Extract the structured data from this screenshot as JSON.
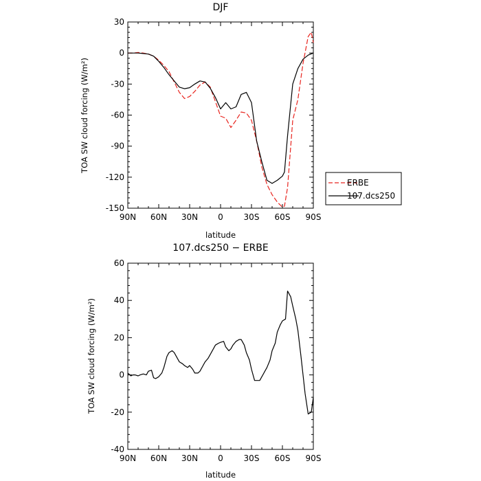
{
  "chart_data": [
    {
      "type": "line",
      "title": "DJF",
      "xlabel": "latitude",
      "ylabel": "TOA SW cloud forcing (W/m²)",
      "xlim": [
        90,
        -90
      ],
      "ylim": [
        -150,
        30
      ],
      "xticks": [
        90,
        60,
        30,
        0,
        -30,
        -60,
        -90
      ],
      "xtick_labels": [
        "90N",
        "60N",
        "30N",
        "0",
        "30S",
        "60S",
        "90S"
      ],
      "yticks": [
        30,
        0,
        -30,
        -60,
        -90,
        -120,
        -150
      ],
      "ytick_labels": [
        "30",
        "0",
        "-30",
        "-60",
        "-90",
        "-120",
        "-150"
      ],
      "grid": false,
      "legend_position": "right",
      "series": [
        {
          "name": "ERBE",
          "color": "#e8231d",
          "style": "dashed",
          "x": [
            90,
            85,
            80,
            75,
            70,
            65,
            60,
            55,
            50,
            45,
            40,
            35,
            30,
            25,
            20,
            15,
            10,
            5,
            0,
            -5,
            -10,
            -15,
            -20,
            -25,
            -30,
            -35,
            -40,
            -45,
            -50,
            -55,
            -60,
            -62,
            -65,
            -70,
            -75,
            -80,
            -85,
            -88,
            -90
          ],
          "values": [
            0,
            0,
            0.5,
            0,
            -1,
            -3,
            -7,
            -12,
            -18,
            -28,
            -38,
            -44,
            -42,
            -37,
            -31,
            -28,
            -33,
            -47,
            -61,
            -63,
            -72,
            -65,
            -57,
            -58,
            -65,
            -85,
            -110,
            -127,
            -137,
            -144,
            -149,
            -148,
            -130,
            -65,
            -45,
            -10,
            16,
            20,
            10
          ]
        },
        {
          "name": "107.dcs250",
          "color": "#000000",
          "style": "solid",
          "x": [
            90,
            85,
            80,
            75,
            70,
            65,
            60,
            55,
            50,
            45,
            40,
            35,
            30,
            25,
            20,
            15,
            10,
            5,
            0,
            -5,
            -10,
            -15,
            -20,
            -25,
            -30,
            -35,
            -40,
            -45,
            -50,
            -55,
            -60,
            -62,
            -65,
            -70,
            -75,
            -80,
            -85,
            -90
          ],
          "values": [
            0,
            0,
            0,
            -0.5,
            -1,
            -3,
            -8,
            -14,
            -21,
            -27,
            -33,
            -34.5,
            -33.5,
            -30,
            -27,
            -28,
            -34,
            -43,
            -54,
            -48,
            -54,
            -52,
            -40,
            -38,
            -48,
            -85,
            -105,
            -123,
            -126,
            -123,
            -119,
            -115,
            -80,
            -30,
            -15,
            -6,
            -2,
            0
          ]
        }
      ]
    },
    {
      "type": "line",
      "title": "107.dcs250 − ERBE",
      "xlabel": "latitude",
      "ylabel": "TOA SW cloud forcing (W/m²)",
      "xlim": [
        90,
        -90
      ],
      "ylim": [
        -40,
        60
      ],
      "xticks": [
        90,
        60,
        30,
        0,
        -30,
        -60,
        -90
      ],
      "xtick_labels": [
        "90N",
        "60N",
        "30N",
        "0",
        "30S",
        "60S",
        "90S"
      ],
      "yticks": [
        60,
        40,
        20,
        0,
        -20,
        -40
      ],
      "ytick_labels": [
        "60",
        "40",
        "20",
        "0",
        "-20",
        "-40"
      ],
      "grid": false,
      "series": [
        {
          "color": "#000000",
          "style": "solid",
          "x": [
            90,
            87,
            85,
            83,
            80,
            78,
            75,
            72,
            70,
            67,
            65,
            63,
            60,
            57,
            55,
            52,
            50,
            47,
            45,
            42,
            40,
            37,
            35,
            32,
            30,
            27,
            25,
            22,
            20,
            17,
            15,
            12,
            10,
            7,
            5,
            2,
            0,
            -3,
            -5,
            -8,
            -10,
            -12,
            -15,
            -18,
            -20,
            -23,
            -25,
            -28,
            -30,
            -33,
            -35,
            -38,
            -40,
            -43,
            -45,
            -48,
            -50,
            -53,
            -55,
            -58,
            -60,
            -63,
            -65,
            -68,
            -70,
            -73,
            -75,
            -78,
            -80,
            -82,
            -85,
            -88,
            -90
          ],
          "values": [
            1,
            -0.5,
            0,
            0,
            -0.5,
            0,
            0.5,
            0,
            2,
            2.5,
            -1.5,
            -2,
            -1,
            1,
            4,
            10,
            12,
            13,
            12,
            9,
            7,
            6,
            5,
            4,
            5,
            3,
            1,
            1,
            2,
            5,
            7,
            9,
            11,
            14,
            16,
            17,
            17.5,
            18,
            15,
            13,
            14,
            16,
            18,
            19,
            19,
            16,
            12,
            8,
            3,
            -3,
            -3,
            -3,
            -1,
            2,
            4,
            8,
            13,
            17,
            23,
            27,
            29,
            30,
            45,
            42,
            37,
            30,
            24,
            10,
            0,
            -10,
            -21,
            -20,
            -12
          ]
        }
      ]
    }
  ]
}
